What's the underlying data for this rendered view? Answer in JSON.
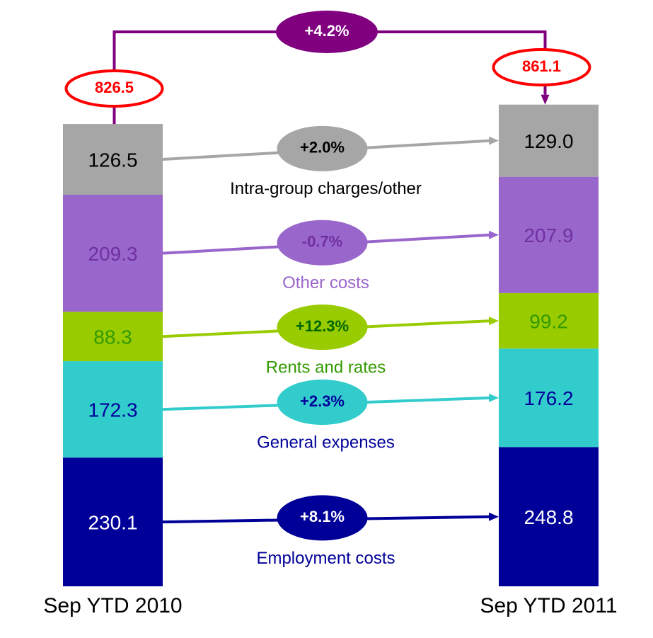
{
  "chart_data": {
    "type": "bar",
    "stacked": true,
    "categories": [
      "Sep YTD 2010",
      "Sep YTD 2011"
    ],
    "series": [
      {
        "name": "Employment costs",
        "color": "#000099",
        "values": [
          230.1,
          248.8
        ],
        "value_labels": [
          "230.1",
          "248.8"
        ],
        "change_label": "+8.1%"
      },
      {
        "name": "General expenses",
        "color": "#33cccc",
        "values": [
          172.3,
          176.2
        ],
        "value_labels": [
          "172.3",
          "176.2"
        ],
        "change_label": "+2.3%"
      },
      {
        "name": "Rents and rates",
        "color": "#99cc00",
        "values": [
          88.3,
          99.2
        ],
        "value_labels": [
          "88.3",
          "99.2"
        ],
        "change_label": "+12.3%"
      },
      {
        "name": "Other costs",
        "color": "#9966cc",
        "values": [
          209.3,
          207.9
        ],
        "value_labels": [
          "209.3",
          "207.9"
        ],
        "change_label": "-0.7%"
      },
      {
        "name": "Intra-group charges/other",
        "color": "#a6a6a6",
        "values": [
          126.5,
          129.0
        ],
        "value_labels": [
          "126.5",
          "129.0"
        ],
        "change_label": "+2.0%"
      }
    ],
    "totals": [
      826.5,
      861.1
    ],
    "total_change_label": "+4.2%"
  }
}
